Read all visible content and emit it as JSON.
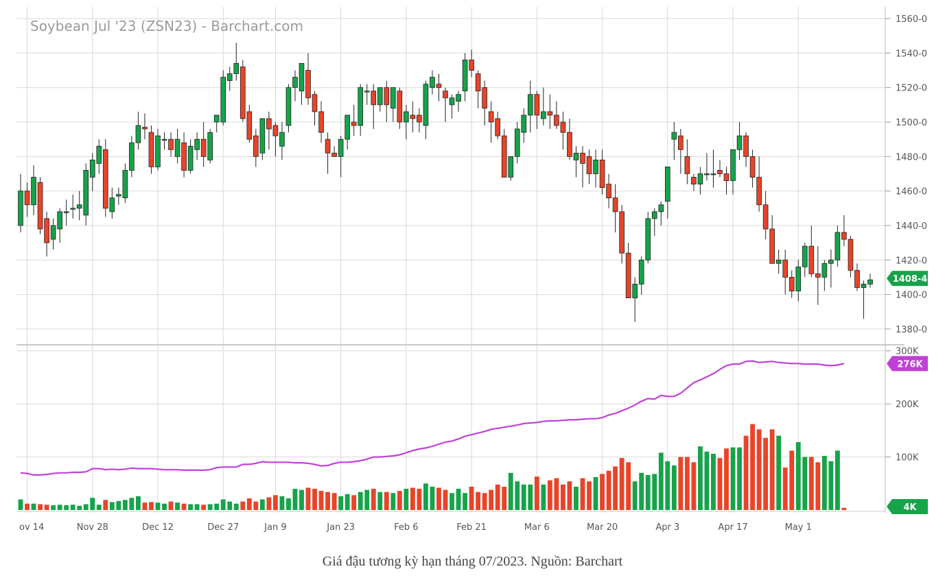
{
  "colors": {
    "up": "#16a34a",
    "down": "#e8442a",
    "oi_line": "#c040d8",
    "grid": "#d8d8d8"
  },
  "chart_data": {
    "type": "candlestick",
    "title": "Soybean Jul '23 (ZSN23) - Barchart.com",
    "price_axis": {
      "ylim": [
        1372,
        1566
      ],
      "ticks": [
        "1560-0",
        "1540-0",
        "1520-0",
        "1500-0",
        "1480-0",
        "1460-0",
        "1440-0",
        "1420-0",
        "1400-0",
        "1380-0"
      ],
      "tick_values": [
        1560,
        1540,
        1520,
        1500,
        1480,
        1460,
        1440,
        1420,
        1400,
        1380
      ]
    },
    "volume_axis": {
      "ylim": [
        0,
        310000
      ],
      "ticks": [
        "300K",
        "200K",
        "100K"
      ],
      "tick_values": [
        300000,
        200000,
        100000
      ]
    },
    "x_labels": [
      "ov 14",
      "Nov 28",
      "Dec 12",
      "Dec 27",
      "Jan 9",
      "Jan 23",
      "Feb 6",
      "Feb 21",
      "Mar 6",
      "Mar 20",
      "Apr 3",
      "Apr 17",
      "May 1"
    ],
    "x_label_bars": [
      1,
      11,
      21,
      31,
      39,
      49,
      59,
      69,
      79,
      89,
      99,
      109,
      119
    ],
    "last_price": {
      "label": "1408-4",
      "value": 1408.5
    },
    "last_oi": {
      "label": "276K",
      "value": 276000
    },
    "last_volume": {
      "label": "4K",
      "value": 4000
    },
    "grid": true,
    "series": [
      {
        "type": "ohlc",
        "values": [
          [
            1440,
            1470,
            1436,
            1460
          ],
          [
            1460,
            1465,
            1445,
            1452
          ],
          [
            1452,
            1475,
            1446,
            1468
          ],
          [
            1465,
            1468,
            1435,
            1438
          ],
          [
            1444,
            1448,
            1422,
            1430
          ],
          [
            1432,
            1444,
            1426,
            1440
          ],
          [
            1438,
            1450,
            1430,
            1448
          ],
          [
            1448,
            1455,
            1440,
            1448
          ],
          [
            1450,
            1458,
            1444,
            1450
          ],
          [
            1450,
            1460,
            1443,
            1452
          ],
          [
            1446,
            1476,
            1440,
            1472
          ],
          [
            1468,
            1482,
            1460,
            1478
          ],
          [
            1476,
            1490,
            1470,
            1486
          ],
          [
            1484,
            1490,
            1445,
            1450
          ],
          [
            1448,
            1462,
            1444,
            1456
          ],
          [
            1457,
            1462,
            1452,
            1458
          ],
          [
            1456,
            1476,
            1453,
            1472
          ],
          [
            1472,
            1492,
            1468,
            1488
          ],
          [
            1488,
            1506,
            1484,
            1498
          ],
          [
            1497,
            1505,
            1490,
            1496
          ],
          [
            1494,
            1498,
            1470,
            1474
          ],
          [
            1474,
            1496,
            1472,
            1492
          ],
          [
            1490,
            1494,
            1484,
            1490
          ],
          [
            1490,
            1494,
            1480,
            1484
          ],
          [
            1480,
            1496,
            1476,
            1490
          ],
          [
            1488,
            1494,
            1468,
            1472
          ],
          [
            1472,
            1490,
            1470,
            1486
          ],
          [
            1484,
            1494,
            1478,
            1490
          ],
          [
            1490,
            1500,
            1474,
            1480
          ],
          [
            1478,
            1496,
            1476,
            1494
          ],
          [
            1500,
            1502,
            1494,
            1504
          ],
          [
            1500,
            1530,
            1498,
            1526
          ],
          [
            1524,
            1532,
            1518,
            1528
          ],
          [
            1528,
            1546,
            1524,
            1534
          ],
          [
            1532,
            1536,
            1500,
            1502
          ],
          [
            1506,
            1510,
            1488,
            1490
          ],
          [
            1492,
            1496,
            1474,
            1480
          ],
          [
            1482,
            1500,
            1478,
            1502
          ],
          [
            1502,
            1506,
            1484,
            1496
          ],
          [
            1498,
            1500,
            1480,
            1492
          ],
          [
            1486,
            1500,
            1478,
            1494
          ],
          [
            1498,
            1522,
            1494,
            1520
          ],
          [
            1520,
            1530,
            1512,
            1526
          ],
          [
            1518,
            1534,
            1510,
            1534
          ],
          [
            1530,
            1540,
            1510,
            1514
          ],
          [
            1516,
            1518,
            1498,
            1506
          ],
          [
            1506,
            1512,
            1488,
            1494
          ],
          [
            1490,
            1494,
            1470,
            1482
          ],
          [
            1482,
            1486,
            1480,
            1480
          ],
          [
            1480,
            1492,
            1468,
            1490
          ],
          [
            1490,
            1504,
            1484,
            1504
          ],
          [
            1500,
            1510,
            1492,
            1498
          ],
          [
            1498,
            1522,
            1492,
            1520
          ],
          [
            1518,
            1522,
            1510,
            1518
          ],
          [
            1518,
            1522,
            1496,
            1510
          ],
          [
            1510,
            1520,
            1506,
            1520
          ],
          [
            1520,
            1524,
            1500,
            1510
          ],
          [
            1508,
            1520,
            1500,
            1520
          ],
          [
            1518,
            1520,
            1496,
            1500
          ],
          [
            1500,
            1510,
            1490,
            1506
          ],
          [
            1504,
            1512,
            1494,
            1502
          ],
          [
            1504,
            1508,
            1494,
            1500
          ],
          [
            1498,
            1524,
            1490,
            1522
          ],
          [
            1520,
            1530,
            1516,
            1526
          ],
          [
            1522,
            1528,
            1512,
            1520
          ],
          [
            1518,
            1520,
            1500,
            1514
          ],
          [
            1510,
            1516,
            1502,
            1514
          ],
          [
            1512,
            1518,
            1506,
            1516
          ],
          [
            1518,
            1540,
            1512,
            1536
          ],
          [
            1536,
            1542,
            1526,
            1530
          ],
          [
            1528,
            1530,
            1508,
            1518
          ],
          [
            1520,
            1524,
            1498,
            1508
          ],
          [
            1506,
            1512,
            1488,
            1500
          ],
          [
            1502,
            1506,
            1490,
            1492
          ],
          [
            1492,
            1496,
            1470,
            1468
          ],
          [
            1468,
            1480,
            1466,
            1480
          ],
          [
            1480,
            1500,
            1476,
            1496
          ],
          [
            1494,
            1508,
            1488,
            1504
          ],
          [
            1504,
            1524,
            1494,
            1516
          ],
          [
            1516,
            1518,
            1496,
            1504
          ],
          [
            1502,
            1520,
            1498,
            1506
          ],
          [
            1506,
            1516,
            1496,
            1504
          ],
          [
            1504,
            1512,
            1496,
            1498
          ],
          [
            1500,
            1506,
            1484,
            1494
          ],
          [
            1494,
            1502,
            1478,
            1480
          ],
          [
            1478,
            1486,
            1468,
            1482
          ],
          [
            1482,
            1486,
            1462,
            1476
          ],
          [
            1480,
            1484,
            1464,
            1470
          ],
          [
            1470,
            1484,
            1462,
            1478
          ],
          [
            1478,
            1484,
            1458,
            1462
          ],
          [
            1464,
            1470,
            1450,
            1456
          ],
          [
            1456,
            1464,
            1436,
            1448
          ],
          [
            1448,
            1452,
            1418,
            1424
          ],
          [
            1424,
            1430,
            1398,
            1398
          ],
          [
            1398,
            1410,
            1384,
            1406
          ],
          [
            1406,
            1422,
            1400,
            1420
          ],
          [
            1420,
            1448,
            1418,
            1444
          ],
          [
            1444,
            1450,
            1434,
            1448
          ],
          [
            1448,
            1454,
            1440,
            1452
          ],
          [
            1454,
            1474,
            1444,
            1474
          ],
          [
            1490,
            1500,
            1478,
            1494
          ],
          [
            1492,
            1496,
            1470,
            1484
          ],
          [
            1480,
            1490,
            1464,
            1470
          ],
          [
            1468,
            1470,
            1460,
            1464
          ],
          [
            1464,
            1474,
            1458,
            1470
          ],
          [
            1470,
            1482,
            1466,
            1470
          ],
          [
            1470,
            1484,
            1462,
            1470
          ],
          [
            1472,
            1478,
            1468,
            1470
          ],
          [
            1470,
            1474,
            1458,
            1466
          ],
          [
            1466,
            1484,
            1458,
            1484
          ],
          [
            1484,
            1500,
            1478,
            1492
          ],
          [
            1492,
            1494,
            1474,
            1480
          ],
          [
            1480,
            1484,
            1462,
            1468
          ],
          [
            1468,
            1480,
            1448,
            1452
          ],
          [
            1452,
            1460,
            1432,
            1438
          ],
          [
            1438,
            1446,
            1418,
            1418
          ],
          [
            1418,
            1426,
            1412,
            1420
          ],
          [
            1420,
            1426,
            1400,
            1410
          ],
          [
            1410,
            1414,
            1398,
            1402
          ],
          [
            1402,
            1420,
            1396,
            1416
          ],
          [
            1416,
            1430,
            1410,
            1428
          ],
          [
            1428,
            1440,
            1410,
            1412
          ],
          [
            1412,
            1428,
            1394,
            1410
          ],
          [
            1410,
            1420,
            1402,
            1418
          ],
          [
            1418,
            1426,
            1404,
            1420
          ],
          [
            1420,
            1440,
            1416,
            1436
          ],
          [
            1436,
            1446,
            1428,
            1432
          ],
          [
            1432,
            1434,
            1410,
            1414
          ],
          [
            1414,
            1418,
            1402,
            1404
          ],
          [
            1404,
            1408,
            1386,
            1406
          ],
          [
            1406,
            1412,
            1404,
            1408.5
          ]
        ]
      },
      {
        "type": "volume",
        "values": [
          20000,
          12000,
          12000,
          11000,
          10000,
          9000,
          10000,
          9000,
          10000,
          8000,
          11000,
          23000,
          10000,
          19000,
          15000,
          17000,
          19000,
          23000,
          26000,
          14000,
          15000,
          14000,
          12000,
          16000,
          14000,
          12000,
          11000,
          11000,
          10000,
          11000,
          12000,
          20000,
          16000,
          12000,
          16000,
          22000,
          16000,
          20000,
          24000,
          28000,
          26000,
          22000,
          40000,
          38000,
          42000,
          40000,
          36000,
          34000,
          32000,
          26000,
          30000,
          28000,
          34000,
          38000,
          40000,
          34000,
          34000,
          32000,
          36000,
          40000,
          42000,
          40000,
          50000,
          44000,
          42000,
          38000,
          32000,
          40000,
          32000,
          44000,
          34000,
          32000,
          38000,
          48000,
          44000,
          70000,
          54000,
          48000,
          48000,
          63000,
          48000,
          56000,
          60000,
          48000,
          54000,
          44000,
          60000,
          54000,
          62000,
          68000,
          74000,
          82000,
          98000,
          90000,
          54000,
          70000,
          66000,
          68000,
          108000,
          92000,
          84000,
          100000,
          100000,
          90000,
          120000,
          110000,
          106000,
          98000,
          116000,
          118000,
          118000,
          140000,
          162000,
          152000,
          136000,
          152000,
          140000,
          80000,
          112000,
          128000,
          100000,
          100000,
          90000,
          102000,
          92000,
          112000,
          4000
        ]
      },
      {
        "type": "open_interest",
        "values": [
          70000,
          69000,
          66000,
          66000,
          67000,
          69000,
          70000,
          70000,
          71000,
          71000,
          72000,
          78000,
          78000,
          76000,
          77000,
          76000,
          77000,
          79000,
          78000,
          78000,
          78000,
          77000,
          76000,
          76000,
          76000,
          75000,
          75000,
          75000,
          75000,
          76000,
          80000,
          81000,
          81000,
          81000,
          86000,
          86000,
          88000,
          91000,
          90000,
          90000,
          90000,
          90000,
          89000,
          89000,
          88000,
          86000,
          83000,
          84000,
          88000,
          90000,
          90000,
          91000,
          93000,
          96000,
          100000,
          100000,
          101000,
          102000,
          104000,
          108000,
          112000,
          115000,
          117000,
          120000,
          124000,
          128000,
          130000,
          134000,
          139000,
          142000,
          145000,
          148000,
          152000,
          154000,
          156000,
          158000,
          160000,
          163000,
          164000,
          165000,
          167000,
          168000,
          168000,
          169000,
          170000,
          170000,
          171000,
          172000,
          172000,
          174000,
          179000,
          182000,
          187000,
          192000,
          198000,
          205000,
          210000,
          209000,
          216000,
          214000,
          214000,
          220000,
          230000,
          240000,
          245000,
          251000,
          257000,
          265000,
          272000,
          275000,
          275000,
          280000,
          281000,
          278000,
          279000,
          280000,
          278000,
          277000,
          276000,
          276000,
          275000,
          275000,
          275000,
          273000,
          272000,
          273000,
          276000
        ]
      }
    ]
  },
  "caption": "Giá đậu tương kỳ hạn tháng 07/2023. Nguồn: Barchart"
}
